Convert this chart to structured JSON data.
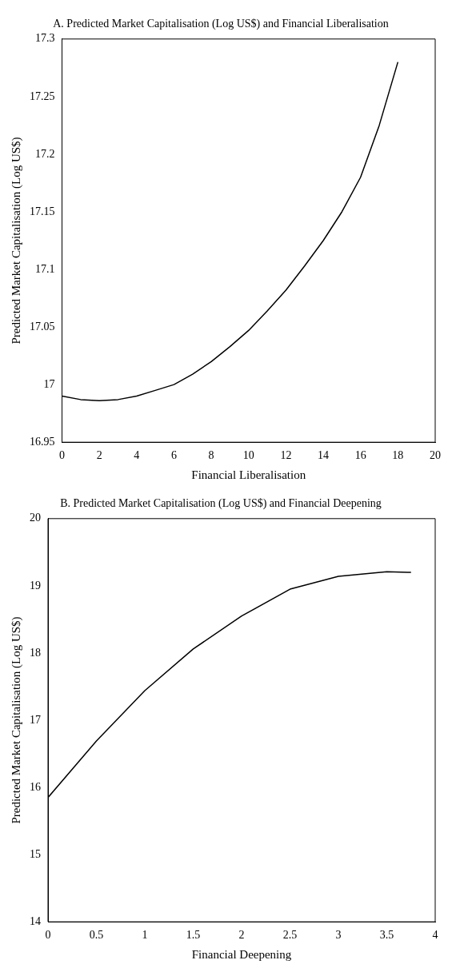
{
  "chart_data": [
    {
      "type": "line",
      "title": "A. Predicted Market Capitalisation (Log US$) and Financial Liberalisation",
      "xlabel": "Financial Liberalisation",
      "ylabel": "Predicted Market Capitalisation (Log US$)",
      "series": [
        {
          "color": "#000000",
          "x": [
            0,
            1,
            2,
            3,
            4,
            5,
            6,
            7,
            8,
            9,
            10,
            11,
            12,
            13,
            14,
            15,
            16,
            17,
            18
          ],
          "values": [
            16.99,
            16.987,
            16.986,
            16.987,
            16.99,
            16.995,
            17.0,
            17.009,
            17.02,
            17.033,
            17.047,
            17.064,
            17.082,
            17.103,
            17.125,
            17.15,
            17.18,
            17.225,
            17.28
          ]
        }
      ],
      "xlim": [
        0,
        20
      ],
      "xticks": [
        0,
        2,
        4,
        6,
        8,
        10,
        12,
        14,
        16,
        18,
        20
      ],
      "ylim": [
        16.95,
        17.3
      ],
      "yticks": [
        16.95,
        17,
        17.05,
        17.1,
        17.15,
        17.2,
        17.25,
        17.3
      ],
      "marker": "none",
      "line_style": "solid"
    },
    {
      "type": "line",
      "title": "B. Predicted Market Capitalisation (Log US$) and Financial Deepening",
      "xlabel": "Financial Deepening",
      "ylabel": "Predicted Market Capitalisation (Log US$)",
      "series": [
        {
          "color": "#000000",
          "x": [
            0,
            0.5,
            1,
            1.5,
            2,
            2.5,
            3,
            3.5,
            3.75
          ],
          "values": [
            15.85,
            16.69,
            17.44,
            18.06,
            18.55,
            18.95,
            19.14,
            19.21,
            19.2
          ]
        }
      ],
      "xlim": [
        0,
        4
      ],
      "xticks": [
        0,
        0.5,
        1,
        1.5,
        2,
        2.5,
        3,
        3.5,
        4
      ],
      "ylim": [
        14,
        20
      ],
      "yticks": [
        14,
        15,
        16,
        17,
        18,
        19,
        20
      ],
      "marker": "none",
      "line_style": "solid"
    }
  ]
}
